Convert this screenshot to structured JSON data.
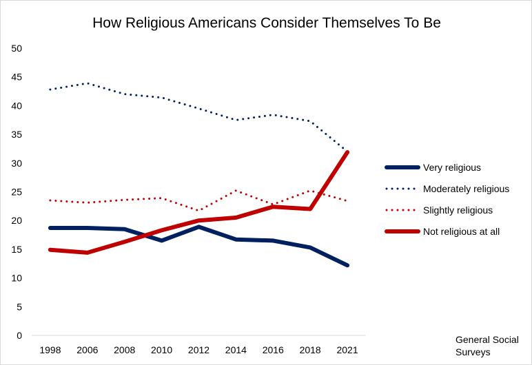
{
  "chart_data": {
    "type": "line",
    "title": "How Religious Americans Consider Themselves To Be",
    "xlabel": "",
    "ylabel": "",
    "categories": [
      "1998",
      "2006",
      "2008",
      "2010",
      "2012",
      "2014",
      "2016",
      "2018",
      "2021"
    ],
    "ylim": [
      0,
      50
    ],
    "yticks": [
      0,
      5,
      10,
      15,
      20,
      25,
      30,
      35,
      40,
      45,
      50
    ],
    "grid": false,
    "legend": "right",
    "series": [
      {
        "name": "Very religious",
        "values": [
          18.7,
          18.7,
          18.5,
          16.5,
          18.9,
          16.7,
          16.5,
          15.3,
          12.2
        ],
        "color": "#002060",
        "style": "solid"
      },
      {
        "name": "Moderately religious",
        "values": [
          42.8,
          43.9,
          42.0,
          41.4,
          39.5,
          37.5,
          38.4,
          37.3,
          32.0
        ],
        "color": "#002060",
        "style": "dotted"
      },
      {
        "name": "Slightly religious",
        "values": [
          23.5,
          23.1,
          23.6,
          23.9,
          21.7,
          25.2,
          22.8,
          25.2,
          23.4
        ],
        "color": "#c00000",
        "style": "dotted"
      },
      {
        "name": "Not religious at all",
        "values": [
          14.9,
          14.4,
          16.3,
          18.3,
          20.0,
          20.5,
          22.4,
          22.0,
          31.9
        ],
        "color": "#c00000",
        "style": "solid"
      }
    ],
    "annotations": [
      "General Social Surveys"
    ]
  }
}
